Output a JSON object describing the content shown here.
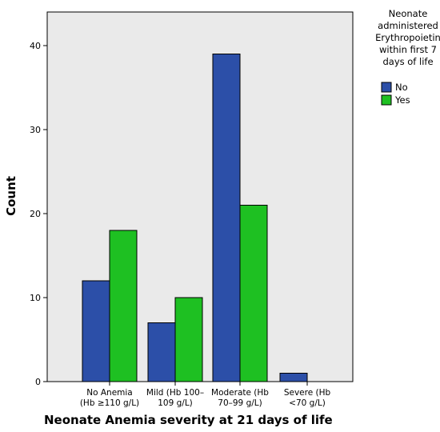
{
  "chart_data": {
    "type": "bar",
    "xlabel": "Neonate Anemia severity at 21 days of life",
    "ylabel": "Count",
    "categories": [
      [
        "No Anemia",
        "(Hb ≥110 g/L)"
      ],
      [
        "Mild (Hb 100–",
        "109 g/L)"
      ],
      [
        "Moderate (Hb",
        "70–99 g/L)"
      ],
      [
        "Severe (Hb",
        "<70 g/L)"
      ]
    ],
    "ylim": [
      0,
      44
    ],
    "yticks": [
      0,
      10,
      20,
      30,
      40
    ],
    "legend": {
      "title_lines": [
        "Neonate",
        "administered",
        "Erythropoietin",
        "within first 7",
        "days of life"
      ],
      "placement": "right"
    },
    "series": [
      {
        "name": "No",
        "color": "#2c4fa8",
        "values": [
          12,
          7,
          39,
          1
        ]
      },
      {
        "name": "Yes",
        "color": "#1ec022",
        "values": [
          18,
          10,
          21,
          0
        ]
      }
    ],
    "plot_background": "#eaeaea",
    "grid": false
  }
}
